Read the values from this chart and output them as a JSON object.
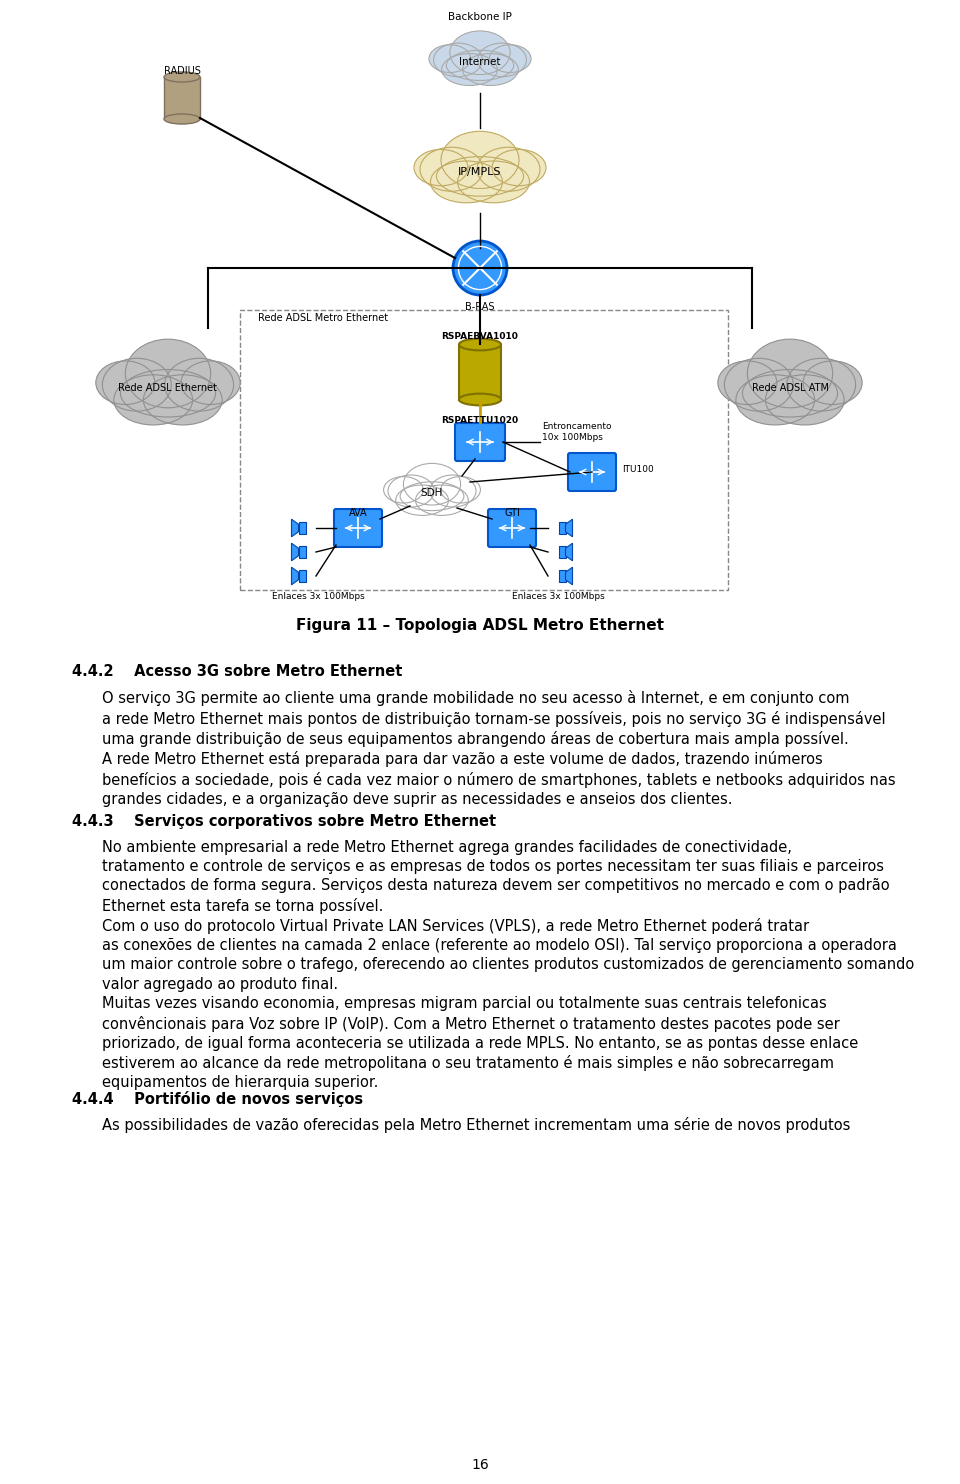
{
  "background_color": "#ffffff",
  "fig_caption": "Figura 11 – Topologia ADSL Metro Ethernet",
  "section_442_heading": "4.4.2    Acesso 3G sobre Metro Ethernet",
  "section_442_para1": "O serviço 3G permite ao cliente uma grande mobilidade no seu acesso à Internet, e em conjunto com\na rede Metro Ethernet mais pontos de distribuição tornam-se possíveis, pois no serviço 3G é indispensável\numa grande distribuição de seus equipamentos abrangendo áreas de cobertura mais ampla possível.",
  "section_442_para2": "A rede Metro Ethernet está preparada para dar vazão a este volume de dados, trazendo inúmeros\nbenefícios a sociedade, pois é cada vez maior o número de smartphones, tablets e netbooks adquiridos nas\ngrandes cidades, e a organização deve suprir as necessidades e anseios dos clientes.",
  "section_443_heading": "4.4.3    Serviços corporativos sobre Metro Ethernet",
  "section_443_para1": "No ambiente empresarial a rede Metro Ethernet agrega grandes facilidades de conectividade,\ntratamento e controle de serviços e as empresas de todos os portes necessitam ter suas filiais e parceiros\nconectados de forma segura. Serviços desta natureza devem ser competitivos no mercado e com o padrão\nEthernet esta tarefa se torna possível.",
  "section_443_para2": "Com o uso do protocolo Virtual Private LAN Services (VPLS), a rede Metro Ethernet poderá tratar\nas conexões de clientes na camada 2 enlace (referente ao modelo OSI). Tal serviço proporciona a operadora\num maior controle sobre o trafego, oferecendo ao clientes produtos customizados de gerenciamento somando\nvalor agregado ao produto final.",
  "section_443_para3": "Muitas vezes visando economia, empresas migram parcial ou totalmente suas centrais telefonicas\nconvêncionais para Voz sobre IP (VoIP). Com a Metro Ethernet o tratamento destes pacotes pode ser\npriorizado, de igual forma aconteceria se utilizada a rede MPLS. No entanto, se as pontas desse enlace\nestiverem ao alcance da rede metropolitana o seu tratamento é mais simples e não sobrecarregam\nequipamentos de hierarquia superior.",
  "section_444_heading": "4.4.4    Portifólio de novos serviços",
  "section_444_para1": "As possibilidades de vazão oferecidas pela Metro Ethernet incrementam uma série de novos produtos",
  "page_number": "16"
}
